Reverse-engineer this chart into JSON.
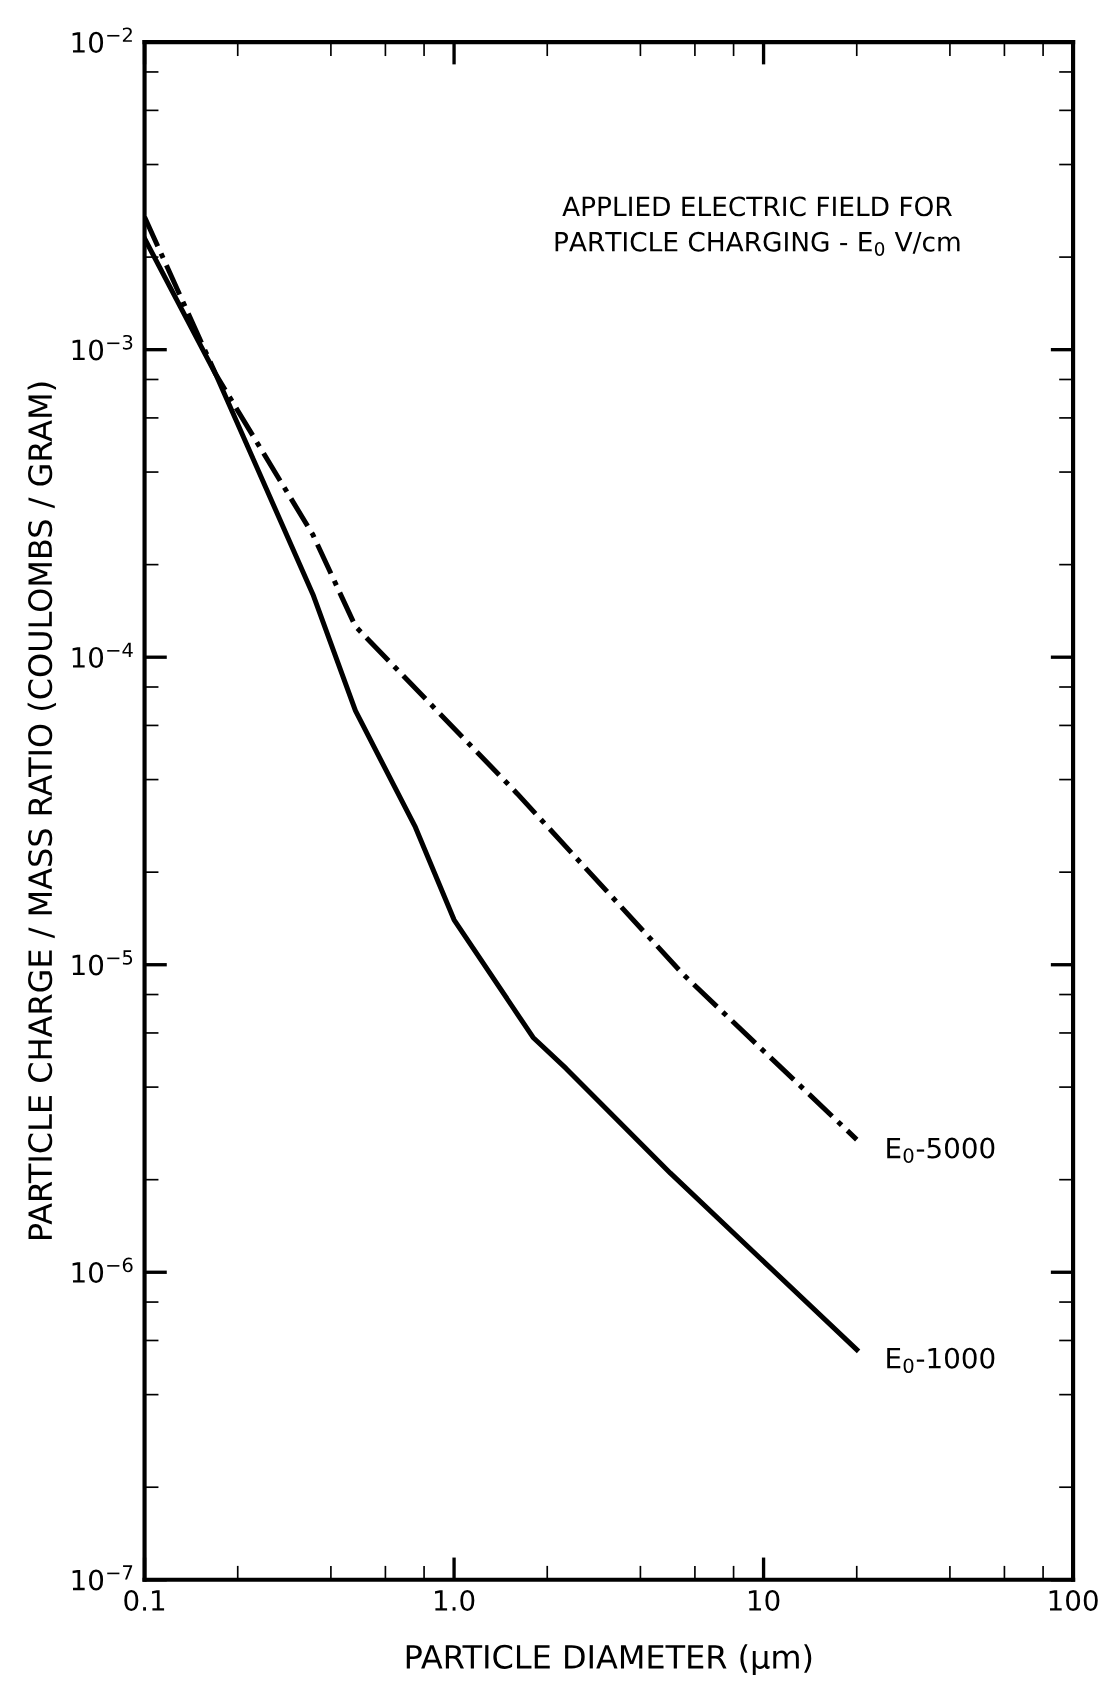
{
  "chart_data": {
    "type": "line",
    "xlabel": "PARTICLE DIAMETER (μm)",
    "ylabel": "PARTICLE CHARGE / MASS RATIO (COULOMBS / GRAM)",
    "annotations": [
      "APPLIED ELECTRIC FIELD FOR\nPARTICLE CHARGING - E$_{0}$ V/cm"
    ],
    "log": "xy",
    "grid": false,
    "legend": false,
    "marker": "none",
    "xlim": [
      0.1,
      100
    ],
    "ylim": [
      1e-07,
      0.01
    ],
    "xticks": [
      {
        "value": 0.1,
        "label": "0.1"
      },
      {
        "value": 1,
        "label": "1.0"
      },
      10,
      100
    ],
    "yticks": [
      {
        "value": 1e-07,
        "label": "10$^{−7}$"
      },
      {
        "value": 1e-06,
        "label": "10$^{−6}$"
      },
      {
        "value": 1e-05,
        "label": "10$^{−5}$"
      },
      {
        "value": 0.0001,
        "label": "10$^{−4}$"
      },
      {
        "value": 0.001,
        "label": "10$^{−3}$"
      },
      {
        "value": 0.01,
        "label": "10$^{−2}$"
      }
    ],
    "series": [
      {
        "name": "E$_{0}$-5000",
        "color": "#000000",
        "line_style": "dashdot",
        "x": [
          0.1,
          0.17,
          0.35,
          0.48,
          1.6,
          5.5,
          20
        ],
        "values": [
          0.0027,
          0.00083,
          0.00025,
          0.000126,
          3.6e-05,
          9.3e-06,
          2.7e-06
        ]
      },
      {
        "name": "E$_{0}$-1000",
        "color": "#000000",
        "line_style": "solid",
        "x": [
          0.1,
          0.17,
          0.35,
          0.48,
          0.75,
          1.0,
          1.8,
          2.3,
          5.0,
          20
        ],
        "values": [
          0.0023,
          0.00083,
          0.00016,
          6.7e-05,
          2.8e-05,
          1.4e-05,
          5.8e-06,
          4.6e-06,
          2.1e-06,
          5.6e-07
        ]
      }
    ]
  }
}
